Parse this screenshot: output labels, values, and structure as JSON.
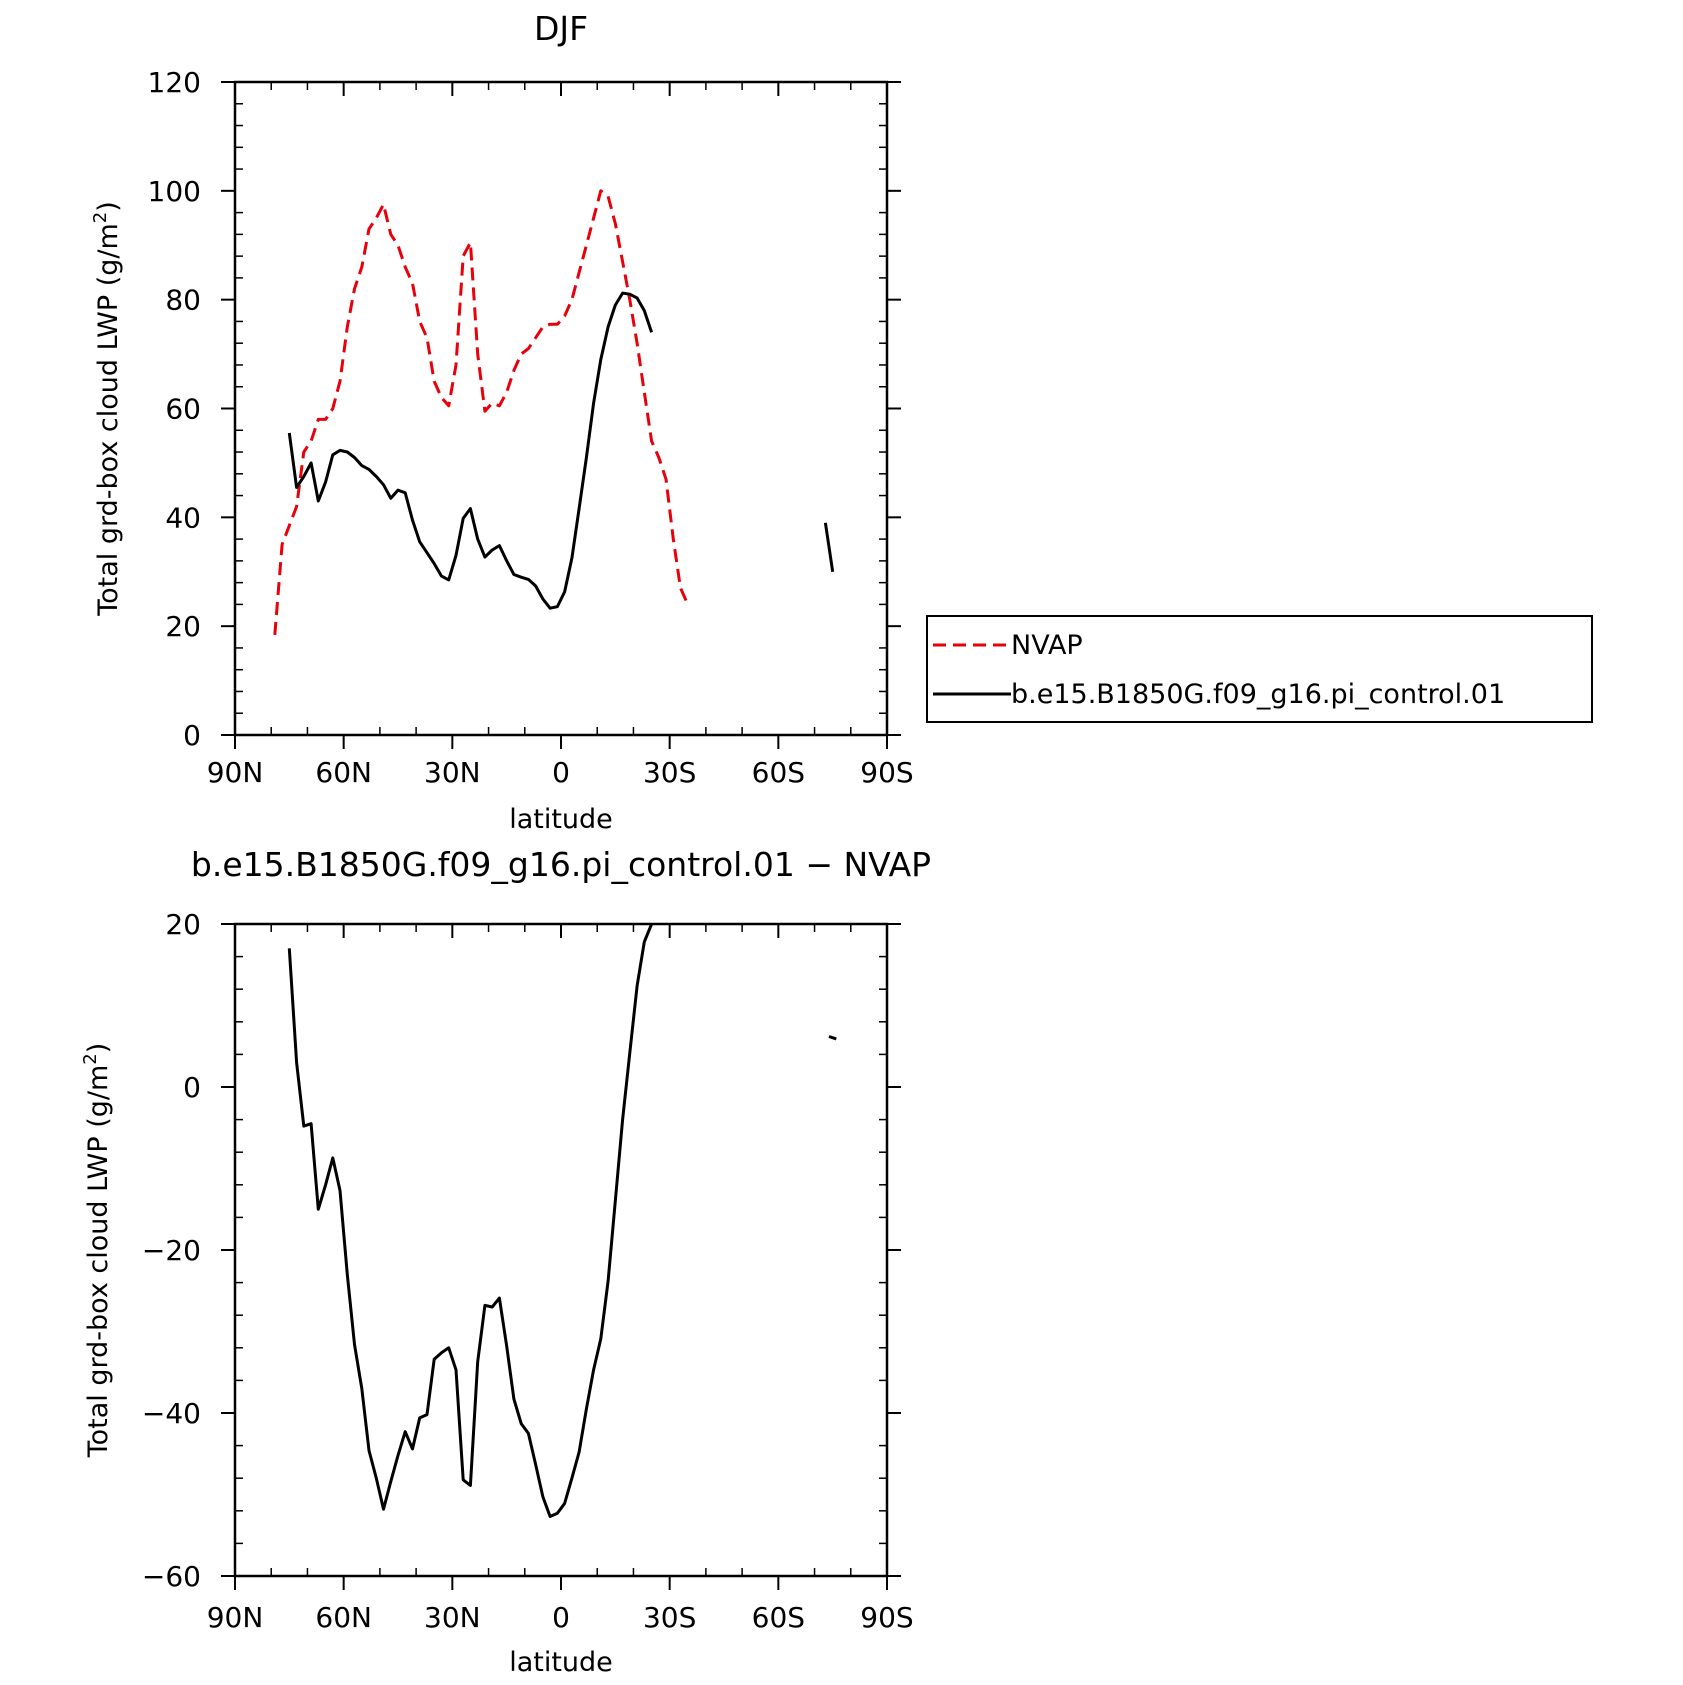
{
  "chart_data": [
    {
      "type": "line",
      "title": "DJF",
      "xlabel": "latitude",
      "ylabel": "Total grd-box cloud LWP (g/m²)",
      "ylabel_main": "Total grd-box cloud LWP (g/m",
      "ylabel_sup": "2",
      "ylabel_end": ")",
      "xlim": [
        90,
        -90
      ],
      "ylim": [
        0,
        120
      ],
      "x_ticks": [
        90,
        60,
        30,
        0,
        -30,
        -60,
        -90
      ],
      "x_tick_labels": [
        "90N",
        "60N",
        "30N",
        "0",
        "30S",
        "60S",
        "90S"
      ],
      "y_ticks": [
        0,
        20,
        40,
        60,
        80,
        100,
        120
      ],
      "y_tick_labels": [
        "0",
        "20",
        "40",
        "60",
        "80",
        "100",
        "120"
      ],
      "legend": {
        "position": "right",
        "entries": [
          {
            "name": "NVAP",
            "color": "#e8000b",
            "dash": true
          },
          {
            "name": "b.e15.B1850G.f09_g16.pi_control.01",
            "color": "#000000",
            "dash": false
          }
        ]
      },
      "series": [
        {
          "name": "NVAP",
          "color": "#e8000b",
          "dash": true,
          "segments": [
            [
              [
                79,
                18.4
              ],
              [
                77,
                35
              ],
              [
                73,
                42
              ],
              [
                71,
                52
              ],
              [
                69,
                54
              ],
              [
                67,
                58
              ],
              [
                65,
                58
              ],
              [
                63,
                60
              ],
              [
                61,
                65
              ],
              [
                59,
                75
              ],
              [
                57,
                82
              ],
              [
                55,
                86
              ],
              [
                53,
                93
              ],
              [
                51,
                95
              ],
              [
                49,
                97.5
              ],
              [
                47,
                92
              ],
              [
                45,
                90
              ],
              [
                43,
                86
              ],
              [
                41,
                83
              ],
              [
                39,
                76
              ],
              [
                37,
                73
              ],
              [
                35,
                65
              ],
              [
                33,
                62
              ],
              [
                31,
                60.5
              ],
              [
                29,
                68
              ],
              [
                27,
                88
              ],
              [
                25,
                90.5
              ],
              [
                23,
                70
              ],
              [
                21,
                59.5
              ],
              [
                19,
                61
              ],
              [
                17,
                60.5
              ],
              [
                15,
                63
              ],
              [
                13,
                67
              ],
              [
                11,
                70
              ],
              [
                9,
                71
              ],
              [
                7,
                73
              ],
              [
                5,
                75
              ],
              [
                3,
                75.5
              ],
              [
                1,
                75.5
              ],
              [
                -1,
                77
              ],
              [
                -3,
                80
              ],
              [
                -5,
                85
              ],
              [
                -7,
                90
              ],
              [
                -9,
                95
              ],
              [
                -11,
                100
              ],
              [
                -13,
                99
              ],
              [
                -15,
                94
              ],
              [
                -17,
                87
              ],
              [
                -19,
                80
              ],
              [
                -21,
                72
              ],
              [
                -23,
                63
              ],
              [
                -25,
                54
              ],
              [
                -27,
                51
              ],
              [
                -29,
                47
              ],
              [
                -31,
                36
              ],
              [
                -33,
                27
              ],
              [
                -35,
                24
              ]
            ]
          ]
        },
        {
          "name": "b.e15.B1850G.f09_g16.pi_control.01",
          "color": "#000000",
          "dash": false,
          "segments": [
            [
              [
                75,
                55.5
              ],
              [
                73,
                45.5
              ],
              [
                71,
                47.5
              ],
              [
                69,
                50
              ],
              [
                67,
                43
              ],
              [
                65,
                46.5
              ],
              [
                63,
                51.5
              ],
              [
                61,
                52.3
              ],
              [
                59,
                52
              ],
              [
                57,
                51
              ],
              [
                55,
                49.5
              ],
              [
                53,
                48.8
              ],
              [
                51,
                47.5
              ],
              [
                49,
                46
              ],
              [
                47,
                43.5
              ],
              [
                45,
                45
              ],
              [
                43,
                44.5
              ],
              [
                41,
                39.5
              ],
              [
                39,
                35.5
              ],
              [
                37,
                33.5
              ],
              [
                35,
                31.5
              ],
              [
                33,
                29.2
              ],
              [
                31,
                28.5
              ],
              [
                29,
                33
              ],
              [
                27,
                39.8
              ],
              [
                25,
                41.6
              ],
              [
                23,
                36
              ],
              [
                21,
                32.7
              ],
              [
                19,
                34
              ],
              [
                17,
                34.8
              ],
              [
                15,
                32
              ],
              [
                13,
                29.5
              ],
              [
                11,
                29
              ],
              [
                9,
                28.6
              ],
              [
                7,
                27.4
              ],
              [
                5,
                25
              ],
              [
                3,
                23.3
              ],
              [
                1,
                23.6
              ],
              [
                -1,
                26.3
              ],
              [
                -3,
                32.5
              ],
              [
                -5,
                41.6
              ],
              [
                -7,
                51
              ],
              [
                -9,
                61
              ],
              [
                -11,
                69
              ],
              [
                -13,
                75
              ],
              [
                -15,
                79
              ],
              [
                -17,
                81.2
              ],
              [
                -19,
                81
              ],
              [
                -21,
                80.3
              ],
              [
                -23,
                78
              ],
              [
                -25,
                74
              ]
            ],
            [
              [
                -73,
                39
              ],
              [
                -75,
                30
              ]
            ]
          ]
        }
      ]
    },
    {
      "type": "line",
      "title": "b.e15.B1850G.f09_g16.pi_control.01 − NVAP",
      "xlabel": "latitude",
      "ylabel": "Total grd-box cloud LWP (g/m²)",
      "ylabel_main": "Total grd-box cloud LWP (g/m",
      "ylabel_sup": "2",
      "ylabel_end": ")",
      "xlim": [
        90,
        -90
      ],
      "ylim": [
        -60,
        20
      ],
      "x_ticks": [
        90,
        60,
        30,
        0,
        -30,
        -60,
        -90
      ],
      "x_tick_labels": [
        "90N",
        "60N",
        "30N",
        "0",
        "30S",
        "60S",
        "90S"
      ],
      "y_ticks": [
        -60,
        -40,
        -20,
        0,
        20
      ],
      "y_tick_labels": [
        "−60",
        "−40",
        "−20",
        "0",
        "20"
      ],
      "series": [
        {
          "name": "b.e15.B1850G.f09_g16.pi_control.01 − NVAP",
          "color": "#000000",
          "dash": false,
          "segments": [
            [
              [
                75,
                17
              ],
              [
                73,
                3
              ],
              [
                71,
                -4.8
              ],
              [
                69,
                -4.5
              ],
              [
                67,
                -15
              ],
              [
                65,
                -12
              ],
              [
                63,
                -8.7
              ],
              [
                61,
                -12.7
              ],
              [
                59,
                -23
              ],
              [
                57,
                -31.6
              ],
              [
                55,
                -37
              ],
              [
                53,
                -44.6
              ],
              [
                51,
                -48
              ],
              [
                49,
                -51.8
              ],
              [
                47,
                -48.4
              ],
              [
                45,
                -45.2
              ],
              [
                43,
                -42.3
              ],
              [
                41,
                -44.4
              ],
              [
                39,
                -40.6
              ],
              [
                37,
                -40.2
              ],
              [
                35,
                -33.4
              ],
              [
                33,
                -32.6
              ],
              [
                31,
                -32
              ],
              [
                29,
                -34.7
              ],
              [
                27,
                -48.2
              ],
              [
                25,
                -48.9
              ],
              [
                23,
                -33.7
              ],
              [
                21,
                -26.8
              ],
              [
                19,
                -27
              ],
              [
                17,
                -25.9
              ],
              [
                15,
                -31.8
              ],
              [
                13,
                -38.3
              ],
              [
                11,
                -41.3
              ],
              [
                9,
                -42.5
              ],
              [
                7,
                -46.3
              ],
              [
                5,
                -50.3
              ],
              [
                3,
                -52.7
              ],
              [
                1,
                -52.3
              ],
              [
                -1,
                -51.1
              ],
              [
                -3,
                -48
              ],
              [
                -5,
                -44.8
              ],
              [
                -7,
                -39.5
              ],
              [
                -9,
                -34.7
              ],
              [
                -11,
                -30.9
              ],
              [
                -13,
                -23.8
              ],
              [
                -15,
                -14
              ],
              [
                -17,
                -4
              ],
              [
                -19,
                4.2
              ],
              [
                -21,
                12.4
              ],
              [
                -23,
                17.8
              ],
              [
                -25,
                20
              ]
            ],
            [
              [
                -74,
                6.2
              ],
              [
                -76,
                5.9
              ]
            ]
          ]
        }
      ]
    }
  ]
}
